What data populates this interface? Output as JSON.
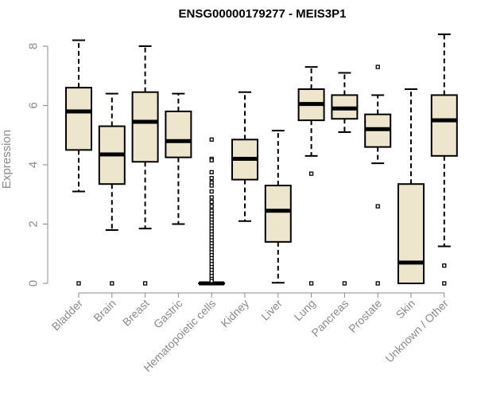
{
  "chart_data": {
    "type": "boxplot",
    "title": "ENSG00000179277 - MEIS3P1",
    "xlabel": "",
    "ylabel": "Expression",
    "ylim": [
      0,
      8.4
    ],
    "yticks": [
      0,
      2,
      4,
      6,
      8
    ],
    "box_fill": "#ede6cc",
    "categories": [
      "Bladder",
      "Brain",
      "Breast",
      "Gastric",
      "Hematopoietic cells",
      "Kidney",
      "Liver",
      "Lung",
      "Pancreas",
      "Prostate",
      "Skin",
      "Unknown / Other"
    ],
    "boxes": [
      {
        "name": "Bladder",
        "whisker_low": 3.1,
        "q1": 4.5,
        "median": 5.8,
        "q3": 6.6,
        "whisker_high": 8.2,
        "outliers": [
          0
        ]
      },
      {
        "name": "Brain",
        "whisker_low": 1.8,
        "q1": 3.35,
        "median": 4.35,
        "q3": 5.3,
        "whisker_high": 6.4,
        "outliers": [
          0
        ]
      },
      {
        "name": "Breast",
        "whisker_low": 1.85,
        "q1": 4.1,
        "median": 5.45,
        "q3": 6.45,
        "whisker_high": 8.0,
        "outliers": [
          0
        ]
      },
      {
        "name": "Gastric",
        "whisker_low": 2.0,
        "q1": 4.25,
        "median": 4.8,
        "q3": 5.8,
        "whisker_high": 6.4,
        "outliers": []
      },
      {
        "name": "Hematopoietic cells",
        "whisker_low": 0,
        "q1": 0,
        "median": 0,
        "q3": 0,
        "whisker_high": 0,
        "outliers": [
          4.85,
          4.2,
          4.15,
          3.75,
          3.55,
          3.4,
          3.3,
          3.1,
          2.9,
          2.75,
          2.6,
          2.45,
          2.35,
          2.25,
          2.15,
          2.05,
          1.95,
          1.85,
          1.75,
          1.65,
          1.55,
          1.45,
          1.35,
          1.25,
          1.15,
          1.05,
          0.95,
          0.85,
          0.75,
          0.65,
          0.55,
          0.45,
          0.35,
          0.25,
          0.15,
          0.08
        ]
      },
      {
        "name": "Kidney",
        "whisker_low": 2.1,
        "q1": 3.5,
        "median": 4.2,
        "q3": 4.85,
        "whisker_high": 6.45,
        "outliers": []
      },
      {
        "name": "Liver",
        "whisker_low": 0.02,
        "q1": 1.4,
        "median": 2.45,
        "q3": 3.3,
        "whisker_high": 5.15,
        "outliers": []
      },
      {
        "name": "Lung",
        "whisker_low": 4.3,
        "q1": 5.5,
        "median": 6.05,
        "q3": 6.55,
        "whisker_high": 7.3,
        "outliers": [
          3.7,
          0
        ]
      },
      {
        "name": "Pancreas",
        "whisker_low": 5.1,
        "q1": 5.55,
        "median": 5.9,
        "q3": 6.35,
        "whisker_high": 7.1,
        "outliers": [
          0
        ]
      },
      {
        "name": "Prostate",
        "whisker_low": 4.05,
        "q1": 4.6,
        "median": 5.2,
        "q3": 5.7,
        "whisker_high": 6.35,
        "outliers": [
          7.3,
          2.6,
          0
        ]
      },
      {
        "name": "Skin",
        "whisker_low": 0,
        "q1": 0,
        "median": 0.7,
        "q3": 3.35,
        "whisker_high": 6.55,
        "outliers": []
      },
      {
        "name": "Unknown / Other",
        "whisker_low": 1.25,
        "q1": 4.3,
        "median": 5.5,
        "q3": 6.35,
        "whisker_high": 8.4,
        "outliers": [
          0.6,
          0
        ]
      }
    ]
  }
}
